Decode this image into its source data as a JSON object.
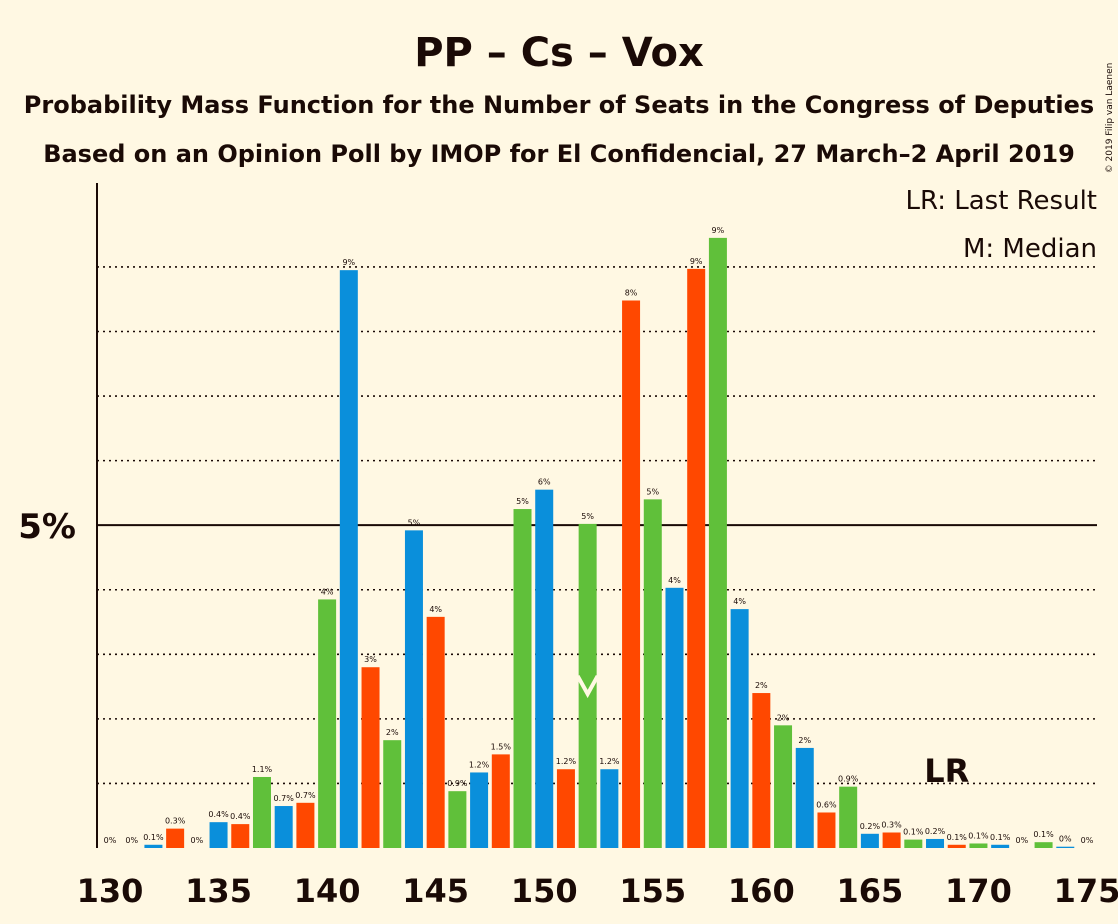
{
  "chart_data": {
    "type": "bar",
    "title": "PP – Cs – Vox",
    "subtitle1": "Probability Mass Function for the Number of Seats in the Congress of Deputies",
    "subtitle2": "Based on an Opinion Poll by IMOP for El Confidencial, 27 March–2 April 2019",
    "copyright": "© 2019 Filip van Laenen",
    "legend": {
      "lr": "LR: Last Result",
      "median": "M: Median"
    },
    "y_tick_label": "5%",
    "y_tick_value": 5,
    "ylim": [
      0,
      10.3
    ],
    "gridlines": [
      1,
      2,
      3,
      4,
      6,
      7,
      8,
      9
    ],
    "x_ticks": [
      130,
      135,
      140,
      145,
      150,
      155,
      160,
      165,
      170,
      175
    ],
    "xlim": [
      129.5,
      175.5
    ],
    "last_result_seat": 169,
    "last_result_label": "LR",
    "median_seat": 152,
    "colors": {
      "blue": "#0a8fdb",
      "red": "#ff4800",
      "green": "#60c03a",
      "text": "#1a0a06",
      "background": "#fff8e3"
    },
    "bars": [
      {
        "seat": 130,
        "value": 0.0,
        "label": "0%",
        "color": "blue"
      },
      {
        "seat": 131,
        "value": 0.0,
        "label": "0%",
        "color": "red"
      },
      {
        "seat": 132,
        "value": 0.05,
        "label": "0.1%",
        "color": "blue"
      },
      {
        "seat": 133,
        "value": 0.3,
        "label": "0.3%",
        "color": "red"
      },
      {
        "seat": 134,
        "value": 0.0,
        "label": "0%",
        "color": "green"
      },
      {
        "seat": 135,
        "value": 0.4,
        "label": "0.4%",
        "color": "blue"
      },
      {
        "seat": 136,
        "value": 0.37,
        "label": "0.4%",
        "color": "red"
      },
      {
        "seat": 137,
        "value": 1.1,
        "label": "1.1%",
        "color": "green"
      },
      {
        "seat": 138,
        "value": 0.65,
        "label": "0.7%",
        "color": "blue"
      },
      {
        "seat": 139,
        "value": 0.7,
        "label": "0.7%",
        "color": "red"
      },
      {
        "seat": 140,
        "value": 3.85,
        "label": "4%",
        "color": "green"
      },
      {
        "seat": 141,
        "value": 8.95,
        "label": "9%",
        "color": "blue"
      },
      {
        "seat": 142,
        "value": 2.8,
        "label": "3%",
        "color": "red"
      },
      {
        "seat": 143,
        "value": 1.67,
        "label": "2%",
        "color": "green"
      },
      {
        "seat": 144,
        "value": 4.92,
        "label": "5%",
        "color": "blue"
      },
      {
        "seat": 145,
        "value": 3.58,
        "label": "4%",
        "color": "red"
      },
      {
        "seat": 146,
        "value": 0.88,
        "label": "0.9%",
        "color": "green"
      },
      {
        "seat": 147,
        "value": 1.17,
        "label": "1.2%",
        "color": "blue"
      },
      {
        "seat": 148,
        "value": 1.45,
        "label": "1.5%",
        "color": "red"
      },
      {
        "seat": 149,
        "value": 5.25,
        "label": "5%",
        "color": "green"
      },
      {
        "seat": 150,
        "value": 5.55,
        "label": "6%",
        "color": "blue"
      },
      {
        "seat": 151,
        "value": 1.22,
        "label": "1.2%",
        "color": "red"
      },
      {
        "seat": 152,
        "value": 5.02,
        "label": "5%",
        "color": "green"
      },
      {
        "seat": 153,
        "value": 1.22,
        "label": "1.2%",
        "color": "blue"
      },
      {
        "seat": 154,
        "value": 8.48,
        "label": "8%",
        "color": "red"
      },
      {
        "seat": 155,
        "value": 5.4,
        "label": "5%",
        "color": "green"
      },
      {
        "seat": 156,
        "value": 4.03,
        "label": "4%",
        "color": "blue"
      },
      {
        "seat": 157,
        "value": 8.97,
        "label": "9%",
        "color": "red"
      },
      {
        "seat": 158,
        "value": 9.45,
        "label": "9%",
        "color": "green"
      },
      {
        "seat": 159,
        "value": 3.7,
        "label": "4%",
        "color": "blue"
      },
      {
        "seat": 160,
        "value": 2.4,
        "label": "2%",
        "color": "red"
      },
      {
        "seat": 161,
        "value": 1.9,
        "label": "2%",
        "color": "green"
      },
      {
        "seat": 162,
        "value": 1.55,
        "label": "2%",
        "color": "blue"
      },
      {
        "seat": 163,
        "value": 0.55,
        "label": "0.6%",
        "color": "red"
      },
      {
        "seat": 164,
        "value": 0.95,
        "label": "0.9%",
        "color": "green"
      },
      {
        "seat": 165,
        "value": 0.22,
        "label": "0.2%",
        "color": "blue"
      },
      {
        "seat": 166,
        "value": 0.24,
        "label": "0.3%",
        "color": "red"
      },
      {
        "seat": 167,
        "value": 0.13,
        "label": "0.1%",
        "color": "green"
      },
      {
        "seat": 168,
        "value": 0.14,
        "label": "0.2%",
        "color": "blue"
      },
      {
        "seat": 169,
        "value": 0.05,
        "label": "0.1%",
        "color": "red"
      },
      {
        "seat": 170,
        "value": 0.07,
        "label": "0.1%",
        "color": "green"
      },
      {
        "seat": 171,
        "value": 0.05,
        "label": "0.1%",
        "color": "blue"
      },
      {
        "seat": 172,
        "value": 0.0,
        "label": "0%",
        "color": "red"
      },
      {
        "seat": 173,
        "value": 0.09,
        "label": "0.1%",
        "color": "green"
      },
      {
        "seat": 174,
        "value": 0.02,
        "label": "0%",
        "color": "blue"
      },
      {
        "seat": 175,
        "value": 0.0,
        "label": "0%",
        "color": "red"
      }
    ]
  }
}
